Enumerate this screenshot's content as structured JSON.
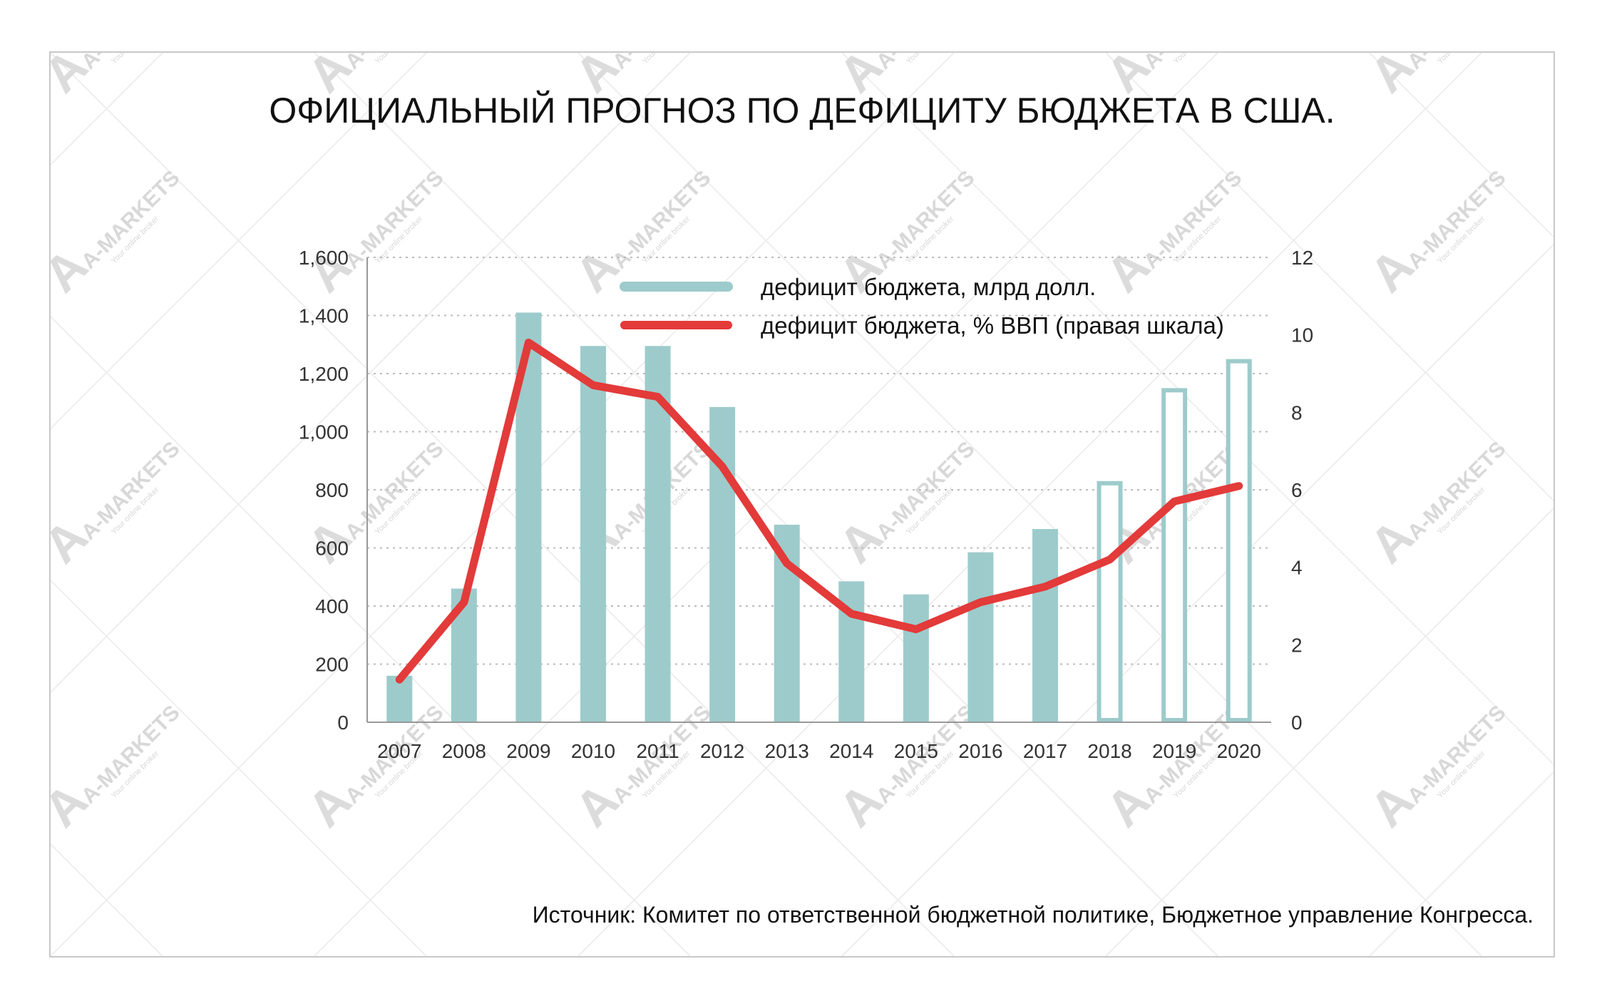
{
  "title": "ОФИЦИАЛЬНЫЙ ПРОГНОЗ ПО ДЕФИЦИТУ БЮДЖЕТА В США.",
  "source": "Источник: Комитет по ответственной бюджетной политике,  Бюджетное управление Конгресса.",
  "watermark": {
    "logo": "A",
    "brand": "A-MARKETS",
    "tagline": "Your online broker"
  },
  "colors": {
    "bars": "#9dcbcb",
    "line": "#e33a3a",
    "grid": "#bbbbbb",
    "axis": "#999999"
  },
  "chart_data": {
    "type": "bar",
    "categories": [
      "2007",
      "2008",
      "2009",
      "2010",
      "2011",
      "2012",
      "2013",
      "2014",
      "2015",
      "2016",
      "2017",
      "2018",
      "2019",
      "2020"
    ],
    "series": [
      {
        "name": "дефицит бюджета, млрд долл.",
        "type": "bar",
        "axis": "left",
        "values": [
          160,
          460,
          1410,
          1295,
          1295,
          1085,
          680,
          485,
          440,
          585,
          665,
          830,
          1150,
          1250
        ],
        "forecast_from": "2018",
        "forecast_style": "outline"
      },
      {
        "name": "дефицит бюджета, % ВВП (правая шкала)",
        "type": "line",
        "axis": "right",
        "values": [
          1.1,
          3.1,
          9.8,
          8.7,
          8.4,
          6.6,
          4.1,
          2.8,
          2.4,
          3.1,
          3.5,
          4.2,
          5.7,
          6.1
        ]
      }
    ],
    "y_left": {
      "ylim": [
        0,
        1600
      ],
      "ticks": [
        "0",
        "200",
        "400",
        "600",
        "800",
        "1,000",
        "1,200",
        "1,400",
        "1,600"
      ]
    },
    "y_right": {
      "ylim": [
        0,
        12
      ],
      "ticks": [
        "0",
        "2",
        "4",
        "6",
        "8",
        "10",
        "12"
      ]
    },
    "grid": true,
    "legend_position": "top-center"
  }
}
